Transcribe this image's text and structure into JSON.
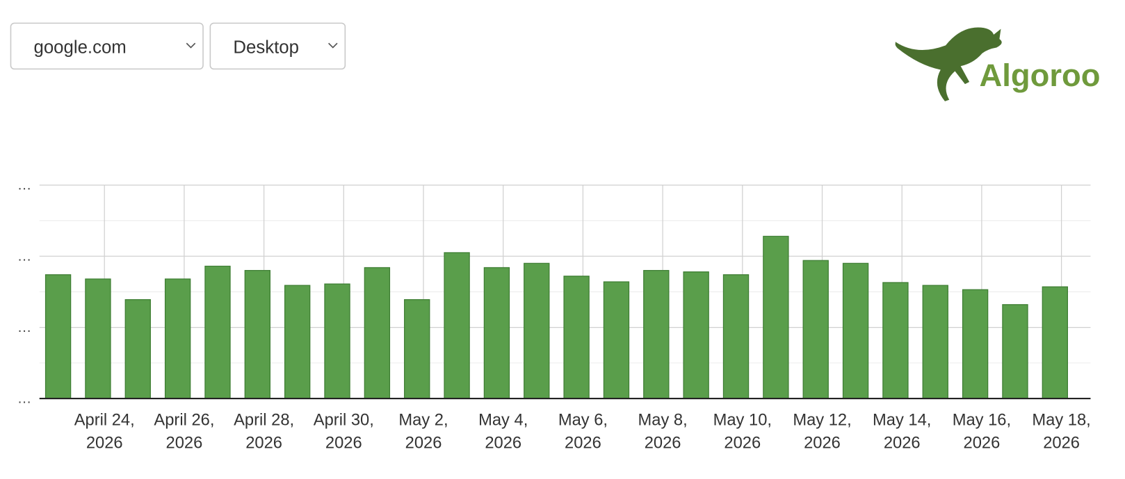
{
  "controls": {
    "site": "google.com",
    "device": "Desktop"
  },
  "logo": {
    "text": "Algoroo"
  },
  "chart_data": {
    "type": "bar",
    "categories": [
      null,
      "April 24, 2026",
      null,
      "April 26, 2026",
      null,
      "April 28, 2026",
      null,
      "April 30, 2026",
      null,
      "May 2, 2026",
      null,
      "May 4, 2026",
      null,
      "May 6, 2026",
      null,
      "May 8, 2026",
      null,
      "May 10, 2026",
      null,
      "May 12, 2026",
      null,
      "May 14, 2026",
      null,
      "May 16, 2026",
      null,
      "May 18, 2026"
    ],
    "values": [
      1.74,
      1.68,
      1.39,
      1.68,
      1.86,
      1.8,
      1.59,
      1.61,
      1.84,
      1.39,
      2.05,
      1.84,
      1.9,
      1.72,
      1.64,
      1.8,
      1.78,
      1.74,
      2.28,
      1.94,
      1.9,
      1.63,
      1.59,
      1.53,
      1.32,
      1.57
    ],
    "color": "#5a9e4b",
    "ylim": [
      0,
      3
    ],
    "yticks": [
      {
        "value": 0,
        "label": "…"
      },
      {
        "value": 1,
        "label": "…"
      },
      {
        "value": 2,
        "label": "…"
      },
      {
        "value": 3,
        "label": "…"
      }
    ],
    "grid": true
  }
}
